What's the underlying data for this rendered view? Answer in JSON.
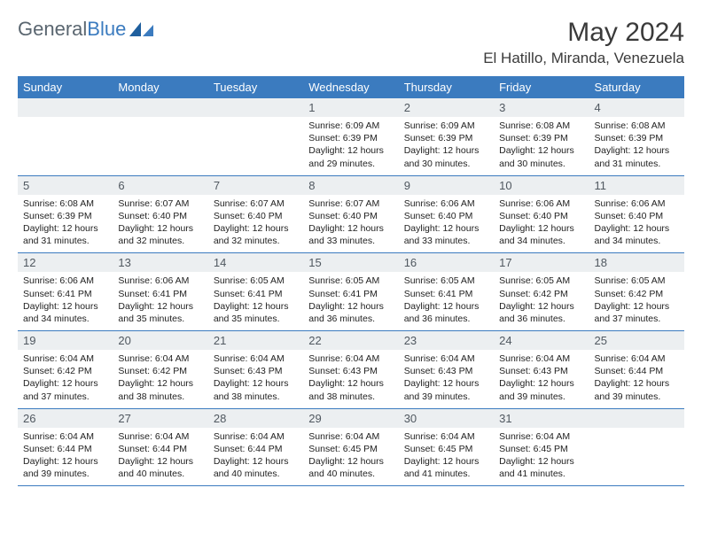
{
  "brand": {
    "part1": "General",
    "part2": "Blue"
  },
  "title": "May 2024",
  "location": "El Hatillo, Miranda, Venezuela",
  "colors": {
    "header_bg": "#3b7bbf",
    "header_text": "#ffffff",
    "daynum_bg": "#eceff1",
    "daynum_text": "#505860",
    "body_text": "#222222",
    "rule": "#3b7bbf",
    "page_bg": "#ffffff"
  },
  "day_headers": [
    "Sunday",
    "Monday",
    "Tuesday",
    "Wednesday",
    "Thursday",
    "Friday",
    "Saturday"
  ],
  "weeks": [
    [
      {
        "n": null
      },
      {
        "n": null
      },
      {
        "n": null
      },
      {
        "n": 1,
        "sr": "6:09 AM",
        "ss": "6:39 PM",
        "dl": "12 hours and 29 minutes."
      },
      {
        "n": 2,
        "sr": "6:09 AM",
        "ss": "6:39 PM",
        "dl": "12 hours and 30 minutes."
      },
      {
        "n": 3,
        "sr": "6:08 AM",
        "ss": "6:39 PM",
        "dl": "12 hours and 30 minutes."
      },
      {
        "n": 4,
        "sr": "6:08 AM",
        "ss": "6:39 PM",
        "dl": "12 hours and 31 minutes."
      }
    ],
    [
      {
        "n": 5,
        "sr": "6:08 AM",
        "ss": "6:39 PM",
        "dl": "12 hours and 31 minutes."
      },
      {
        "n": 6,
        "sr": "6:07 AM",
        "ss": "6:40 PM",
        "dl": "12 hours and 32 minutes."
      },
      {
        "n": 7,
        "sr": "6:07 AM",
        "ss": "6:40 PM",
        "dl": "12 hours and 32 minutes."
      },
      {
        "n": 8,
        "sr": "6:07 AM",
        "ss": "6:40 PM",
        "dl": "12 hours and 33 minutes."
      },
      {
        "n": 9,
        "sr": "6:06 AM",
        "ss": "6:40 PM",
        "dl": "12 hours and 33 minutes."
      },
      {
        "n": 10,
        "sr": "6:06 AM",
        "ss": "6:40 PM",
        "dl": "12 hours and 34 minutes."
      },
      {
        "n": 11,
        "sr": "6:06 AM",
        "ss": "6:40 PM",
        "dl": "12 hours and 34 minutes."
      }
    ],
    [
      {
        "n": 12,
        "sr": "6:06 AM",
        "ss": "6:41 PM",
        "dl": "12 hours and 34 minutes."
      },
      {
        "n": 13,
        "sr": "6:06 AM",
        "ss": "6:41 PM",
        "dl": "12 hours and 35 minutes."
      },
      {
        "n": 14,
        "sr": "6:05 AM",
        "ss": "6:41 PM",
        "dl": "12 hours and 35 minutes."
      },
      {
        "n": 15,
        "sr": "6:05 AM",
        "ss": "6:41 PM",
        "dl": "12 hours and 36 minutes."
      },
      {
        "n": 16,
        "sr": "6:05 AM",
        "ss": "6:41 PM",
        "dl": "12 hours and 36 minutes."
      },
      {
        "n": 17,
        "sr": "6:05 AM",
        "ss": "6:42 PM",
        "dl": "12 hours and 36 minutes."
      },
      {
        "n": 18,
        "sr": "6:05 AM",
        "ss": "6:42 PM",
        "dl": "12 hours and 37 minutes."
      }
    ],
    [
      {
        "n": 19,
        "sr": "6:04 AM",
        "ss": "6:42 PM",
        "dl": "12 hours and 37 minutes."
      },
      {
        "n": 20,
        "sr": "6:04 AM",
        "ss": "6:42 PM",
        "dl": "12 hours and 38 minutes."
      },
      {
        "n": 21,
        "sr": "6:04 AM",
        "ss": "6:43 PM",
        "dl": "12 hours and 38 minutes."
      },
      {
        "n": 22,
        "sr": "6:04 AM",
        "ss": "6:43 PM",
        "dl": "12 hours and 38 minutes."
      },
      {
        "n": 23,
        "sr": "6:04 AM",
        "ss": "6:43 PM",
        "dl": "12 hours and 39 minutes."
      },
      {
        "n": 24,
        "sr": "6:04 AM",
        "ss": "6:43 PM",
        "dl": "12 hours and 39 minutes."
      },
      {
        "n": 25,
        "sr": "6:04 AM",
        "ss": "6:44 PM",
        "dl": "12 hours and 39 minutes."
      }
    ],
    [
      {
        "n": 26,
        "sr": "6:04 AM",
        "ss": "6:44 PM",
        "dl": "12 hours and 39 minutes."
      },
      {
        "n": 27,
        "sr": "6:04 AM",
        "ss": "6:44 PM",
        "dl": "12 hours and 40 minutes."
      },
      {
        "n": 28,
        "sr": "6:04 AM",
        "ss": "6:44 PM",
        "dl": "12 hours and 40 minutes."
      },
      {
        "n": 29,
        "sr": "6:04 AM",
        "ss": "6:45 PM",
        "dl": "12 hours and 40 minutes."
      },
      {
        "n": 30,
        "sr": "6:04 AM",
        "ss": "6:45 PM",
        "dl": "12 hours and 41 minutes."
      },
      {
        "n": 31,
        "sr": "6:04 AM",
        "ss": "6:45 PM",
        "dl": "12 hours and 41 minutes."
      },
      {
        "n": null
      }
    ]
  ],
  "labels": {
    "sunrise": "Sunrise:",
    "sunset": "Sunset:",
    "daylight": "Daylight:"
  }
}
